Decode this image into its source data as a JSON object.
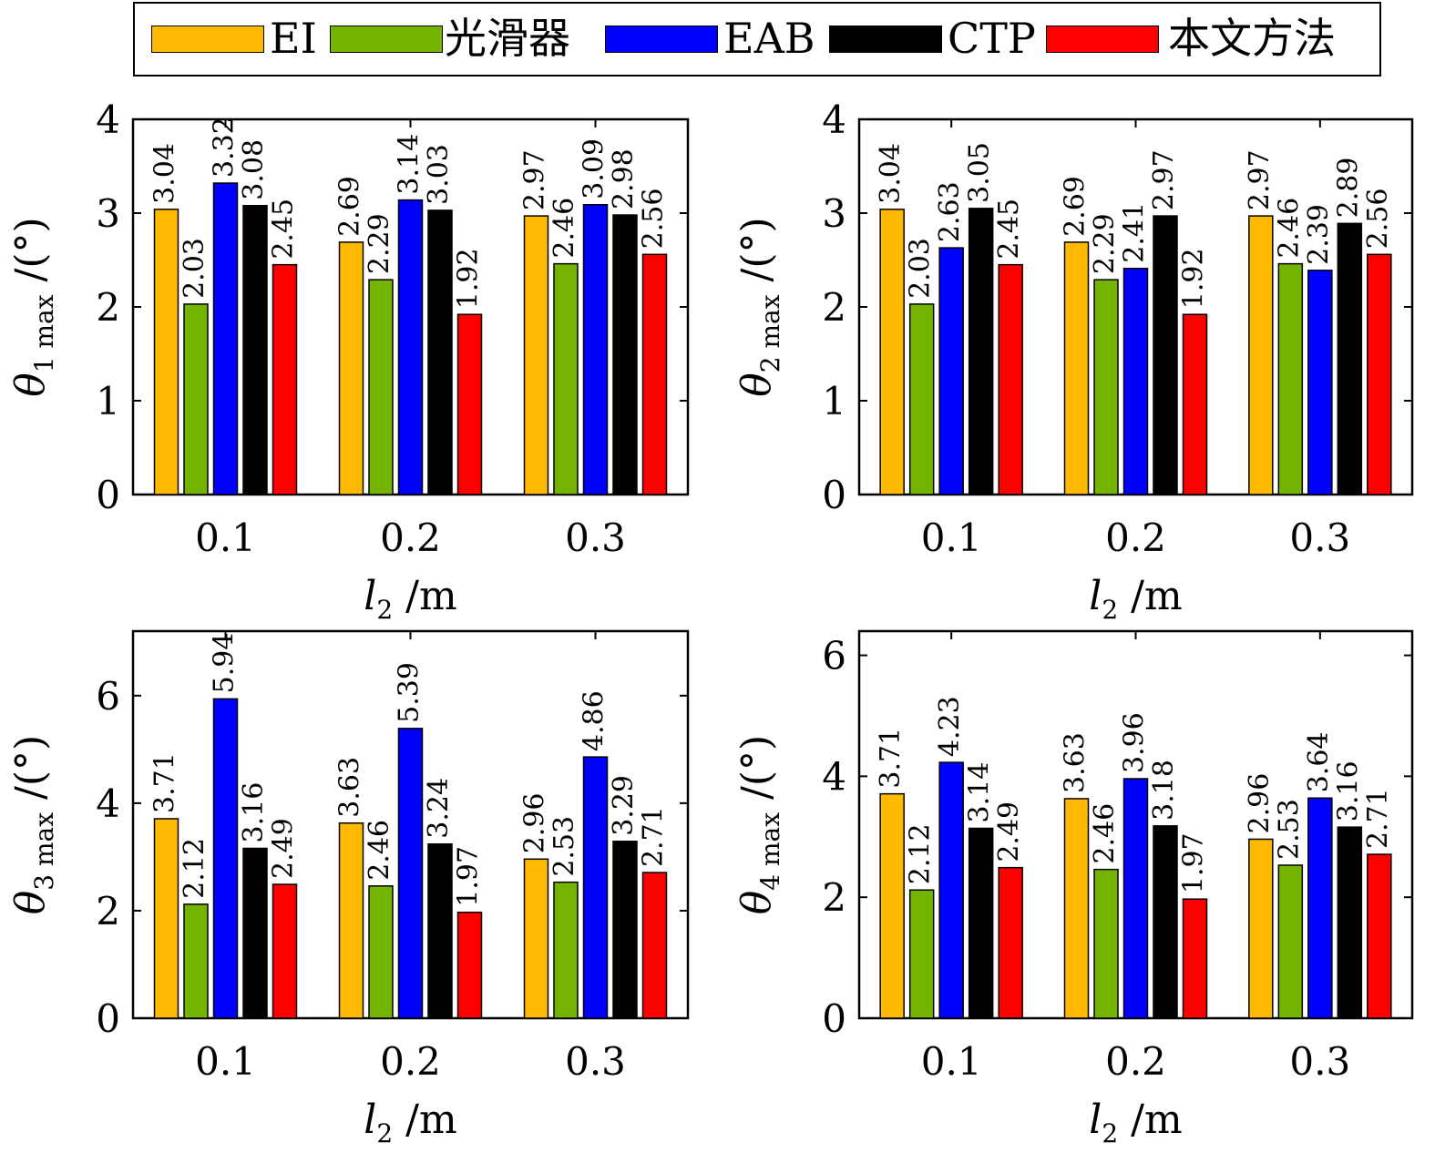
{
  "legend": [
    {
      "name": "EI",
      "color": "#FFB900"
    },
    {
      "name": "光滑器",
      "color": "#74B400"
    },
    {
      "name": "EAB",
      "color": "#0000FF"
    },
    {
      "name": "CTP",
      "color": "#000000"
    },
    {
      "name": "本文方法",
      "color": "#FF0000"
    }
  ],
  "chart_data": [
    {
      "type": "bar",
      "categories": [
        "0.1",
        "0.2",
        "0.3"
      ],
      "xlabel": "l2 /m",
      "ylabel": "θ1 max /(°)",
      "ylim": [
        0,
        4
      ],
      "yticks": [
        "0",
        "1",
        "2",
        "3",
        "4"
      ],
      "series": [
        {
          "name": "EI",
          "values": [
            3.04,
            2.69,
            2.97
          ],
          "labels": [
            "3.04",
            "2.69",
            "2.97"
          ]
        },
        {
          "name": "光滑器",
          "values": [
            2.03,
            2.29,
            2.46
          ],
          "labels": [
            "2.03",
            "2.29",
            "2.46"
          ]
        },
        {
          "name": "EAB",
          "values": [
            3.32,
            3.14,
            3.09
          ],
          "labels": [
            "3.32",
            "3.14",
            "3.09"
          ]
        },
        {
          "name": "CTP",
          "values": [
            3.08,
            3.03,
            2.98
          ],
          "labels": [
            "3.08",
            "3.03",
            "2.98"
          ]
        },
        {
          "name": "本文方法",
          "values": [
            2.45,
            1.92,
            2.56
          ],
          "labels": [
            "2.45",
            "1.92",
            "2.56"
          ]
        }
      ]
    },
    {
      "type": "bar",
      "categories": [
        "0.1",
        "0.2",
        "0.3"
      ],
      "xlabel": "l2 /m",
      "ylabel": "θ2 max /(°)",
      "ylim": [
        0,
        4
      ],
      "yticks": [
        "0",
        "1",
        "2",
        "3",
        "4"
      ],
      "series": [
        {
          "name": "EI",
          "values": [
            3.04,
            2.69,
            2.97
          ],
          "labels": [
            "3.04",
            "2.69",
            "2.97"
          ]
        },
        {
          "name": "光滑器",
          "values": [
            2.03,
            2.29,
            2.46
          ],
          "labels": [
            "2.03",
            "2.29",
            "2.46"
          ]
        },
        {
          "name": "EAB",
          "values": [
            2.63,
            2.41,
            2.39
          ],
          "labels": [
            "2.63",
            "2.41",
            "2.39"
          ]
        },
        {
          "name": "CTP",
          "values": [
            3.05,
            2.97,
            2.89
          ],
          "labels": [
            "3.05",
            "2.97",
            "2.89"
          ]
        },
        {
          "name": "本文方法",
          "values": [
            2.45,
            1.92,
            2.56
          ],
          "labels": [
            "2.45",
            "1.92",
            "2.56"
          ]
        }
      ]
    },
    {
      "type": "bar",
      "categories": [
        "0.1",
        "0.2",
        "0.3"
      ],
      "xlabel": "l2 /m",
      "ylabel": "θ3 max /(°)",
      "ylim": [
        0,
        7.2
      ],
      "yticks": [
        "0",
        "2",
        "4",
        "6"
      ],
      "series": [
        {
          "name": "EI",
          "values": [
            3.71,
            3.63,
            2.96
          ],
          "labels": [
            "3.71",
            "3.63",
            "2.96"
          ]
        },
        {
          "name": "光滑器",
          "values": [
            2.12,
            2.46,
            2.53
          ],
          "labels": [
            "2.12",
            "2.46",
            "2.53"
          ]
        },
        {
          "name": "EAB",
          "values": [
            5.94,
            5.39,
            4.86
          ],
          "labels": [
            "5.94",
            "5.39",
            "4.86"
          ]
        },
        {
          "name": "CTP",
          "values": [
            3.16,
            3.24,
            3.29
          ],
          "labels": [
            "3.16",
            "3.24",
            "3.29"
          ]
        },
        {
          "name": "本文方法",
          "values": [
            2.49,
            1.97,
            2.71
          ],
          "labels": [
            "2.49",
            "1.97",
            "2.71"
          ]
        }
      ]
    },
    {
      "type": "bar",
      "categories": [
        "0.1",
        "0.2",
        "0.3"
      ],
      "xlabel": "l2 /m",
      "ylabel": "θ4 max /(°)",
      "ylim": [
        0,
        6.4
      ],
      "yticks": [
        "0",
        "2",
        "4",
        "6"
      ],
      "series": [
        {
          "name": "EI",
          "values": [
            3.71,
            3.63,
            2.96
          ],
          "labels": [
            "3.71",
            "3.63",
            "2.96"
          ]
        },
        {
          "name": "光滑器",
          "values": [
            2.12,
            2.46,
            2.53
          ],
          "labels": [
            "2.12",
            "2.46",
            "2.53"
          ]
        },
        {
          "name": "EAB",
          "values": [
            4.23,
            3.96,
            3.64
          ],
          "labels": [
            "4.23",
            "3.96",
            "3.64"
          ]
        },
        {
          "name": "CTP",
          "values": [
            3.14,
            3.18,
            3.16
          ],
          "labels": [
            "3.14",
            "3.18",
            "3.16"
          ]
        },
        {
          "name": "本文方法",
          "values": [
            2.49,
            1.97,
            2.71
          ],
          "labels": [
            "2.49",
            "1.97",
            "2.71"
          ]
        }
      ]
    }
  ]
}
